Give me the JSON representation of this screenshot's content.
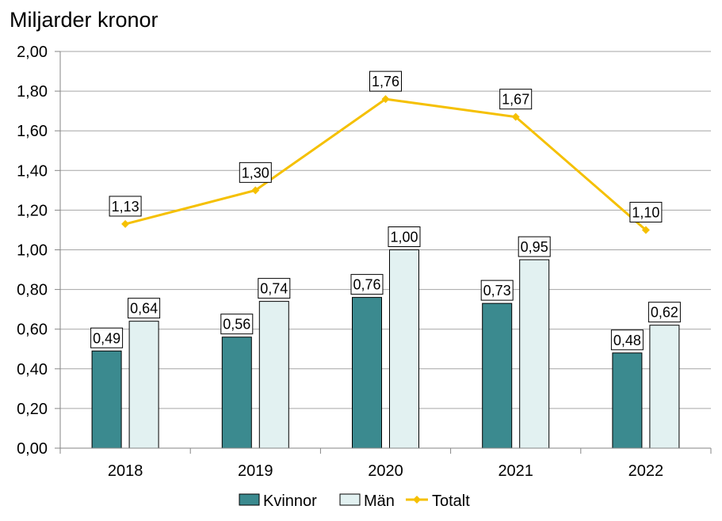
{
  "chart_data": {
    "type": "bar",
    "ylabel": "Miljarder kronor",
    "title": "",
    "xlabel": "",
    "categories": [
      "2018",
      "2019",
      "2020",
      "2021",
      "2022"
    ],
    "ylim": [
      0,
      2
    ],
    "ytick_step": 0.2,
    "ytick_labels": [
      "0,00",
      "0,20",
      "0,40",
      "0,60",
      "0,80",
      "1,00",
      "1,20",
      "1,40",
      "1,60",
      "1,80",
      "2,00"
    ],
    "grid": true,
    "legend_position": "bottom",
    "series": [
      {
        "name": "Kvinnor",
        "kind": "bar",
        "color": "#3b8a8f",
        "values": [
          0.49,
          0.56,
          0.76,
          0.73,
          0.48
        ],
        "labels": [
          "0,49",
          "0,56",
          "0,76",
          "0,73",
          "0,48"
        ]
      },
      {
        "name": "Män",
        "kind": "bar",
        "color": "#e2f1f1",
        "values": [
          0.64,
          0.74,
          1.0,
          0.95,
          0.62
        ],
        "labels": [
          "0,64",
          "0,74",
          "1,00",
          "0,95",
          "0,62"
        ]
      },
      {
        "name": "Totalt",
        "kind": "line",
        "color": "#f5c000",
        "values": [
          1.13,
          1.3,
          1.76,
          1.67,
          1.1
        ],
        "labels": [
          "1,13",
          "1,30",
          "1,76",
          "1,67",
          "1,10"
        ]
      }
    ]
  }
}
